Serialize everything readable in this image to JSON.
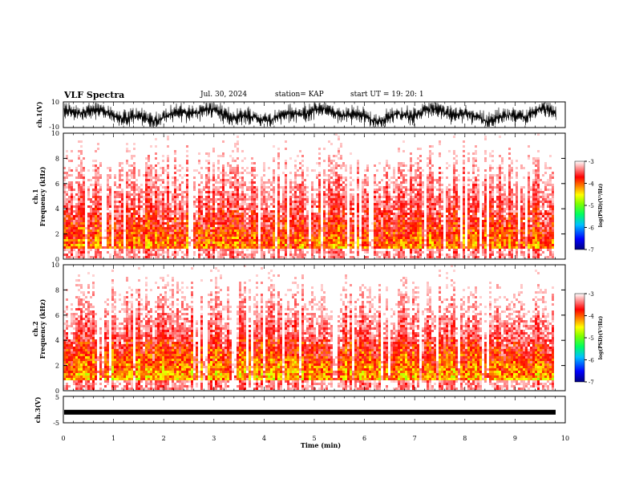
{
  "header": {
    "title": "VLF Spectra",
    "date": "Jul. 30, 2024",
    "station": "station= KAP",
    "start": "start  UT  =   19: 20: 1"
  },
  "chart_data": [
    {
      "type": "line",
      "panel": "ch1-waveform",
      "ylabel": "ch.1(V)",
      "ylim": [
        -10,
        10
      ],
      "ytick_labels": [
        "10",
        "-10"
      ],
      "xlim": [
        0,
        10
      ],
      "series_color": "#000000"
    },
    {
      "type": "heatmap",
      "panel": "ch1-spectrogram",
      "ylabel": "ch.1\nFrequency (kHz)",
      "ylim": [
        0,
        10
      ],
      "ytick_labels": [
        "0",
        "2",
        "4",
        "6",
        "8",
        "10"
      ],
      "xlim": [
        0,
        10
      ],
      "colorbar": {
        "label": "log(PSD)(V²/Hz)",
        "range": [
          -7,
          -3
        ],
        "tick_labels": [
          "-3",
          "-4",
          "-5",
          "-6",
          "-7"
        ]
      },
      "dominant_band_khz": [
        1,
        4
      ]
    },
    {
      "type": "heatmap",
      "panel": "ch2-spectrogram",
      "ylabel": "ch.2\nFrequency (kHz)",
      "ylim": [
        0,
        10
      ],
      "ytick_labels": [
        "0",
        "2",
        "4",
        "6",
        "8",
        "10"
      ],
      "xlim": [
        0,
        10
      ],
      "colorbar": {
        "label": "log(PSD)(V²/Hz)",
        "range": [
          -7,
          -3
        ],
        "tick_labels": [
          "-3",
          "-4",
          "-5",
          "-6",
          "-7"
        ]
      },
      "dominant_band_khz": [
        0.5,
        3.5
      ]
    },
    {
      "type": "line",
      "panel": "ch3-waveform",
      "ylabel": "ch.3(V)",
      "ylim": [
        -5,
        5
      ],
      "ytick_labels": [
        "5",
        "-5"
      ],
      "xlabel": "Time (min)",
      "xlim": [
        0,
        10
      ],
      "xtick_labels": [
        "0",
        "1",
        "2",
        "3",
        "4",
        "5",
        "6",
        "7",
        "8",
        "9",
        "10"
      ],
      "series_color": "#000000",
      "level": -1
    }
  ],
  "colorscale": [
    "#000080",
    "#0000ff",
    "#00a0ff",
    "#00ffa0",
    "#40ff00",
    "#c0ff00",
    "#ffff00",
    "#ff8000",
    "#ff0000",
    "#ff8080",
    "#ffffff"
  ]
}
